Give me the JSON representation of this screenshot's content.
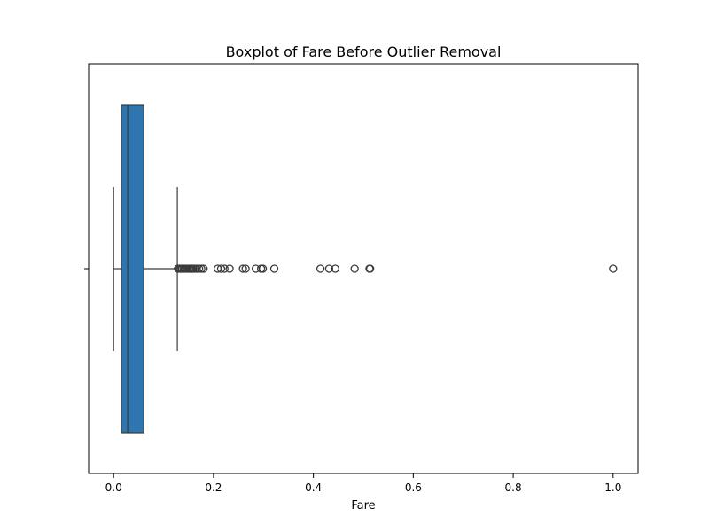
{
  "chart_data": {
    "type": "boxplot",
    "title": "Boxplot of Fare Before Outlier Removal",
    "xlabel": "Fare",
    "ylabel": "",
    "xlim": [
      -0.05,
      1.05
    ],
    "xticks": [
      0.0,
      0.2,
      0.4,
      0.6,
      0.8,
      1.0
    ],
    "xtick_labels": [
      "0.0",
      "0.2",
      "0.4",
      "0.6",
      "0.8",
      "1.0"
    ],
    "orientation": "horizontal",
    "grid": false,
    "box": {
      "whisker_low": 0.0,
      "q1": 0.0155,
      "median": 0.0282,
      "q3": 0.0605,
      "whisker_high": 0.1276,
      "outliers": [
        0.1288,
        0.1318,
        0.1345,
        0.1372,
        0.1403,
        0.1435,
        0.1462,
        0.149,
        0.1518,
        0.1545,
        0.1562,
        0.159,
        0.1625,
        0.1665,
        0.1712,
        0.1755,
        0.1802,
        0.2083,
        0.2152,
        0.2219,
        0.2323,
        0.2589,
        0.2643,
        0.2846,
        0.2953,
        0.2988,
        0.3217,
        0.4141,
        0.4315,
        0.4438,
        0.4826,
        0.5123,
        0.5136,
        1.0
      ]
    },
    "colors": {
      "box_fill": "#2f75b0",
      "line": "#3b3b3b",
      "outlier_edge": "#3b3b3b"
    }
  }
}
